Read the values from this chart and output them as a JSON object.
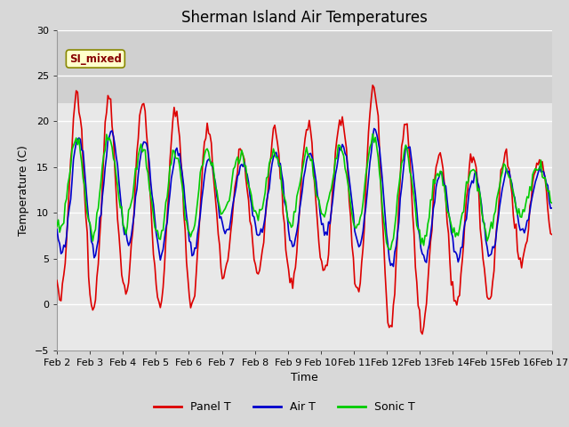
{
  "title": "Sherman Island Air Temperatures",
  "xlabel": "Time",
  "ylabel": "Temperature (C)",
  "ylim": [
    -5,
    30
  ],
  "yticks": [
    -5,
    0,
    5,
    10,
    15,
    20,
    25,
    30
  ],
  "xtick_labels": [
    "Feb 2",
    "Feb 3",
    "Feb 4",
    "Feb 5",
    "Feb 6",
    "Feb 7",
    "Feb 8",
    "Feb 9",
    "Feb 10",
    "Feb 11",
    "Feb 12",
    "Feb 13",
    "Feb 14",
    "Feb 15",
    "Feb 16",
    "Feb 17"
  ],
  "panel_color": "#DD0000",
  "air_color": "#0000CC",
  "sonic_color": "#00CC00",
  "fig_bg_color": "#D8D8D8",
  "plot_bg_color": "#E8E8E8",
  "shade_color": "#D0D0D0",
  "legend_label": "SI_mixed",
  "legend_text_color": "#880000",
  "legend_bg": "#FFFFCC",
  "linewidth": 1.2,
  "title_fontsize": 12,
  "axis_fontsize": 9,
  "tick_fontsize": 8
}
